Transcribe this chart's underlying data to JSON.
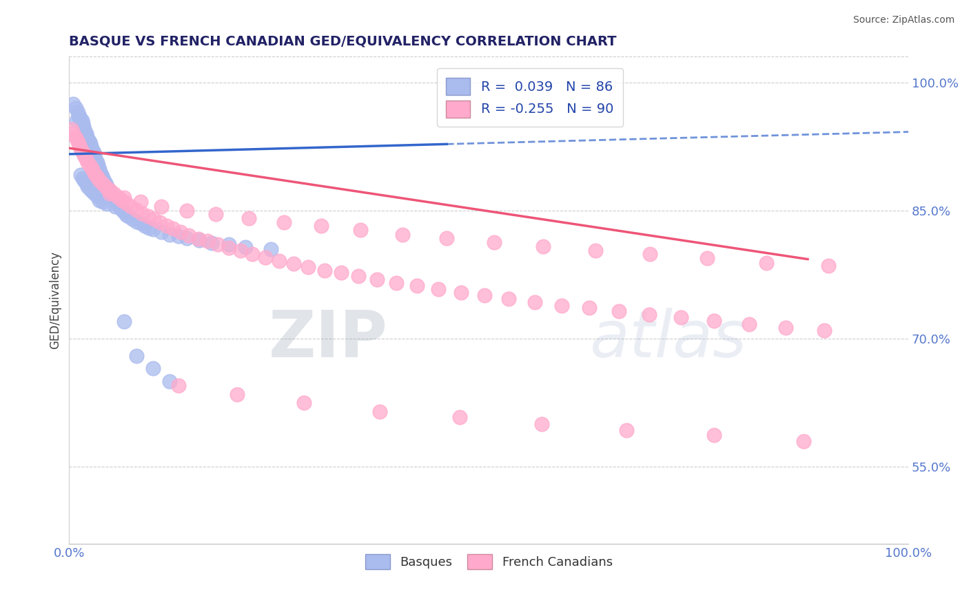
{
  "title": "BASQUE VS FRENCH CANADIAN GED/EQUIVALENCY CORRELATION CHART",
  "source": "Source: ZipAtlas.com",
  "ylabel": "GED/Equivalency",
  "xlim": [
    0.0,
    1.0
  ],
  "ylim": [
    0.46,
    1.03
  ],
  "x_tick_labels": [
    "0.0%",
    "100.0%"
  ],
  "y_tick_labels": [
    "55.0%",
    "70.0%",
    "85.0%",
    "100.0%"
  ],
  "y_tick_values": [
    0.55,
    0.7,
    0.85,
    1.0
  ],
  "basque_color": "#aabbee",
  "french_color": "#ffaacc",
  "basque_line_color": "#3366cc",
  "french_line_color": "#ee5577",
  "legend_basque_display": "Basques",
  "legend_french_display": "French Canadians",
  "basque_R": 0.039,
  "basque_N": 86,
  "french_R": -0.255,
  "french_N": 90,
  "background_color": "#ffffff",
  "grid_color": "#cccccc",
  "title_color": "#222266",
  "axis_label_color": "#5577cc",
  "watermark_zip_color": "#bbccdd",
  "watermark_atlas_color": "#aabbcc",
  "basque_x": [
    0.005,
    0.008,
    0.01,
    0.012,
    0.013,
    0.015,
    0.016,
    0.017,
    0.018,
    0.019,
    0.02,
    0.02,
    0.021,
    0.022,
    0.023,
    0.024,
    0.025,
    0.026,
    0.027,
    0.028,
    0.029,
    0.03,
    0.03,
    0.031,
    0.032,
    0.033,
    0.034,
    0.035,
    0.036,
    0.037,
    0.038,
    0.039,
    0.04,
    0.041,
    0.042,
    0.043,
    0.044,
    0.045,
    0.046,
    0.047,
    0.048,
    0.05,
    0.052,
    0.054,
    0.056,
    0.058,
    0.06,
    0.062,
    0.064,
    0.066,
    0.068,
    0.07,
    0.075,
    0.08,
    0.085,
    0.09,
    0.095,
    0.1,
    0.11,
    0.12,
    0.13,
    0.14,
    0.155,
    0.17,
    0.19,
    0.21,
    0.24,
    0.014,
    0.016,
    0.018,
    0.02,
    0.022,
    0.025,
    0.028,
    0.03,
    0.033,
    0.036,
    0.04,
    0.045,
    0.055,
    0.065,
    0.08,
    0.1,
    0.12,
    0.011,
    0.009
  ],
  "basque_y": [
    0.975,
    0.97,
    0.965,
    0.96,
    0.958,
    0.955,
    0.952,
    0.948,
    0.945,
    0.942,
    0.94,
    0.938,
    0.936,
    0.934,
    0.932,
    0.93,
    0.928,
    0.925,
    0.922,
    0.92,
    0.918,
    0.915,
    0.912,
    0.91,
    0.908,
    0.906,
    0.903,
    0.9,
    0.898,
    0.895,
    0.892,
    0.89,
    0.888,
    0.886,
    0.884,
    0.882,
    0.88,
    0.878,
    0.875,
    0.873,
    0.87,
    0.868,
    0.865,
    0.862,
    0.86,
    0.857,
    0.855,
    0.852,
    0.85,
    0.848,
    0.845,
    0.843,
    0.84,
    0.837,
    0.835,
    0.832,
    0.83,
    0.828,
    0.825,
    0.822,
    0.82,
    0.818,
    0.815,
    0.812,
    0.81,
    0.807,
    0.805,
    0.892,
    0.888,
    0.885,
    0.882,
    0.878,
    0.875,
    0.872,
    0.87,
    0.867,
    0.862,
    0.86,
    0.858,
    0.855,
    0.72,
    0.68,
    0.665,
    0.65,
    0.96,
    0.955
  ],
  "french_x": [
    0.003,
    0.005,
    0.008,
    0.01,
    0.012,
    0.014,
    0.016,
    0.018,
    0.02,
    0.022,
    0.025,
    0.028,
    0.03,
    0.033,
    0.036,
    0.04,
    0.044,
    0.048,
    0.053,
    0.058,
    0.063,
    0.068,
    0.074,
    0.08,
    0.087,
    0.094,
    0.101,
    0.108,
    0.116,
    0.124,
    0.133,
    0.143,
    0.154,
    0.165,
    0.177,
    0.19,
    0.204,
    0.218,
    0.234,
    0.25,
    0.267,
    0.285,
    0.304,
    0.324,
    0.345,
    0.367,
    0.39,
    0.414,
    0.44,
    0.467,
    0.495,
    0.524,
    0.555,
    0.587,
    0.62,
    0.655,
    0.691,
    0.729,
    0.768,
    0.81,
    0.854,
    0.9,
    0.048,
    0.065,
    0.085,
    0.11,
    0.14,
    0.175,
    0.214,
    0.256,
    0.3,
    0.347,
    0.397,
    0.45,
    0.506,
    0.565,
    0.627,
    0.692,
    0.76,
    0.831,
    0.905,
    0.13,
    0.2,
    0.28,
    0.37,
    0.465,
    0.563,
    0.664,
    0.768,
    0.875
  ],
  "french_y": [
    0.945,
    0.94,
    0.935,
    0.93,
    0.926,
    0.922,
    0.918,
    0.914,
    0.91,
    0.906,
    0.902,
    0.898,
    0.893,
    0.889,
    0.885,
    0.881,
    0.877,
    0.874,
    0.87,
    0.866,
    0.862,
    0.859,
    0.855,
    0.851,
    0.847,
    0.843,
    0.84,
    0.836,
    0.832,
    0.829,
    0.825,
    0.821,
    0.817,
    0.814,
    0.81,
    0.806,
    0.803,
    0.799,
    0.795,
    0.791,
    0.788,
    0.784,
    0.78,
    0.777,
    0.773,
    0.769,
    0.765,
    0.762,
    0.758,
    0.754,
    0.751,
    0.747,
    0.743,
    0.739,
    0.736,
    0.732,
    0.728,
    0.725,
    0.721,
    0.717,
    0.713,
    0.71,
    0.87,
    0.865,
    0.86,
    0.855,
    0.85,
    0.846,
    0.841,
    0.836,
    0.832,
    0.827,
    0.822,
    0.818,
    0.813,
    0.808,
    0.803,
    0.799,
    0.794,
    0.789,
    0.785,
    0.645,
    0.635,
    0.625,
    0.615,
    0.608,
    0.6,
    0.593,
    0.587,
    0.58
  ],
  "basque_trend_x0": 0.0,
  "basque_trend_x_solid_end": 0.45,
  "basque_trend_x1": 1.0,
  "basque_trend_y0": 0.916,
  "basque_trend_y1": 0.942,
  "french_trend_x0": 0.0,
  "french_trend_x1": 0.88,
  "french_trend_y0": 0.923,
  "french_trend_y1": 0.793
}
